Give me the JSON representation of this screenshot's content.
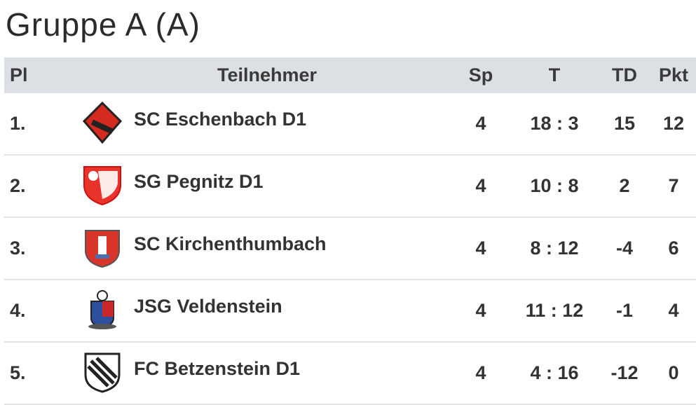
{
  "title": "Gruppe A (A)",
  "table": {
    "header": [
      "Pl",
      "Teilnehmer",
      "Sp",
      "T",
      "TD",
      "Pkt"
    ],
    "rows": [
      [
        "1.",
        "SC Eschenbach D1",
        4,
        "18 : 3",
        15,
        12
      ],
      [
        "2.",
        "SG Pegnitz D1",
        4,
        "10 : 8",
        2,
        7
      ],
      [
        "3.",
        "SC Kirchenthumbach",
        4,
        "8 : 12",
        -4,
        6
      ],
      [
        "4.",
        "JSG Veldenstein",
        4,
        "11 : 12",
        -1,
        4
      ],
      [
        "5.",
        "FC Betzenstein D1",
        4,
        "4 : 16",
        -12,
        0
      ]
    ]
  }
}
